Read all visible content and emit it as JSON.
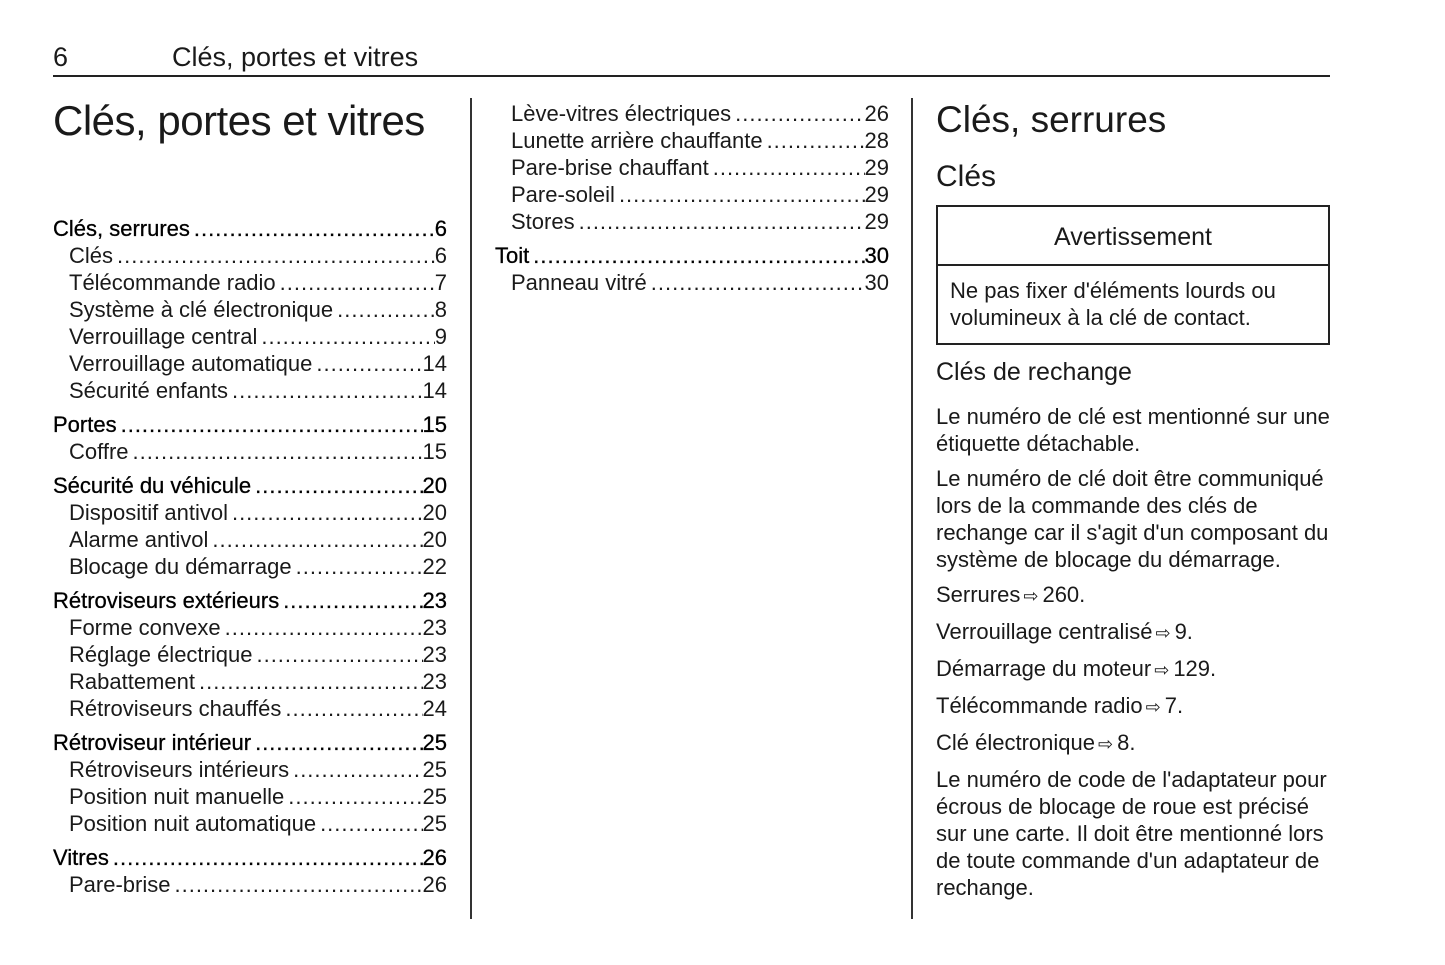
{
  "header": {
    "page_number": "6",
    "running_title": "Clés, portes et vitres"
  },
  "chapter_title": "Clés, portes et vitres",
  "toc_col1": [
    {
      "label": "Clés, serrures",
      "page": "6",
      "level": 1
    },
    {
      "label": "Clés",
      "page": "6",
      "level": 2
    },
    {
      "label": "Télécommande radio",
      "page": "7",
      "level": 2
    },
    {
      "label": "Système à clé électronique",
      "page": "8",
      "level": 2
    },
    {
      "label": "Verrouillage central",
      "page": "9",
      "level": 2
    },
    {
      "label": "Verrouillage automatique",
      "page": "14",
      "level": 2
    },
    {
      "label": "Sécurité enfants",
      "page": "14",
      "level": 2
    },
    {
      "label": "Portes",
      "page": "15",
      "level": 1
    },
    {
      "label": "Coffre",
      "page": "15",
      "level": 2
    },
    {
      "label": "Sécurité du véhicule",
      "page": "20",
      "level": 1
    },
    {
      "label": "Dispositif antivol",
      "page": "20",
      "level": 2
    },
    {
      "label": "Alarme antivol",
      "page": "20",
      "level": 2
    },
    {
      "label": "Blocage du démarrage",
      "page": "22",
      "level": 2
    },
    {
      "label": "Rétroviseurs extérieurs",
      "page": "23",
      "level": 1
    },
    {
      "label": "Forme convexe",
      "page": "23",
      "level": 2
    },
    {
      "label": "Réglage électrique",
      "page": "23",
      "level": 2
    },
    {
      "label": "Rabattement",
      "page": "23",
      "level": 2
    },
    {
      "label": "Rétroviseurs chauffés",
      "page": "24",
      "level": 2
    },
    {
      "label": "Rétroviseur intérieur",
      "page": "25",
      "level": 1
    },
    {
      "label": "Rétroviseurs intérieurs",
      "page": "25",
      "level": 2
    },
    {
      "label": "Position nuit manuelle",
      "page": "25",
      "level": 2
    },
    {
      "label": "Position nuit automatique",
      "page": "25",
      "level": 2
    },
    {
      "label": "Vitres",
      "page": "26",
      "level": 1
    },
    {
      "label": "Pare-brise",
      "page": "26",
      "level": 2
    }
  ],
  "toc_col2": [
    {
      "label": "Lève-vitres électriques",
      "page": "26",
      "level": 2
    },
    {
      "label": "Lunette arrière chauffante",
      "page": "28",
      "level": 2
    },
    {
      "label": "Pare-brise chauffant",
      "page": "29",
      "level": 2
    },
    {
      "label": "Pare-soleil",
      "page": "29",
      "level": 2
    },
    {
      "label": "Stores",
      "page": "29",
      "level": 2
    },
    {
      "label": "Toit",
      "page": "30",
      "level": 1
    },
    {
      "label": "Panneau vitré",
      "page": "30",
      "level": 2
    }
  ],
  "section": {
    "title": "Clés, serrures",
    "subtitle": "Clés",
    "warning": {
      "title": "Avertissement",
      "text": "Ne pas fixer d'éléments lourds ou volumineux à la clé de contact."
    },
    "subsection": "Clés de rechange",
    "paragraphs": [
      "Le numéro de clé est mentionné sur une étiquette détachable.",
      "Le numéro de clé doit être communiqué lors de la commande des clés de rechange car il s'agit d'un composant du système de blocage du démarrage."
    ],
    "references": [
      {
        "label": "Serrures",
        "page": "260."
      },
      {
        "label": "Verrouillage centralisé",
        "page": "9."
      },
      {
        "label": "Démarrage du moteur",
        "page": "129."
      },
      {
        "label": "Télécommande radio",
        "page": "7."
      },
      {
        "label": "Clé électronique",
        "page": "8."
      }
    ],
    "final_paragraph": "Le numéro de code de l'adaptateur pour écrous de blocage de roue est précisé sur une carte. Il doit être mentionné lors de toute commande d'un adaptateur de rechange.",
    "arrow_icon": "see-page-arrow-icon"
  }
}
